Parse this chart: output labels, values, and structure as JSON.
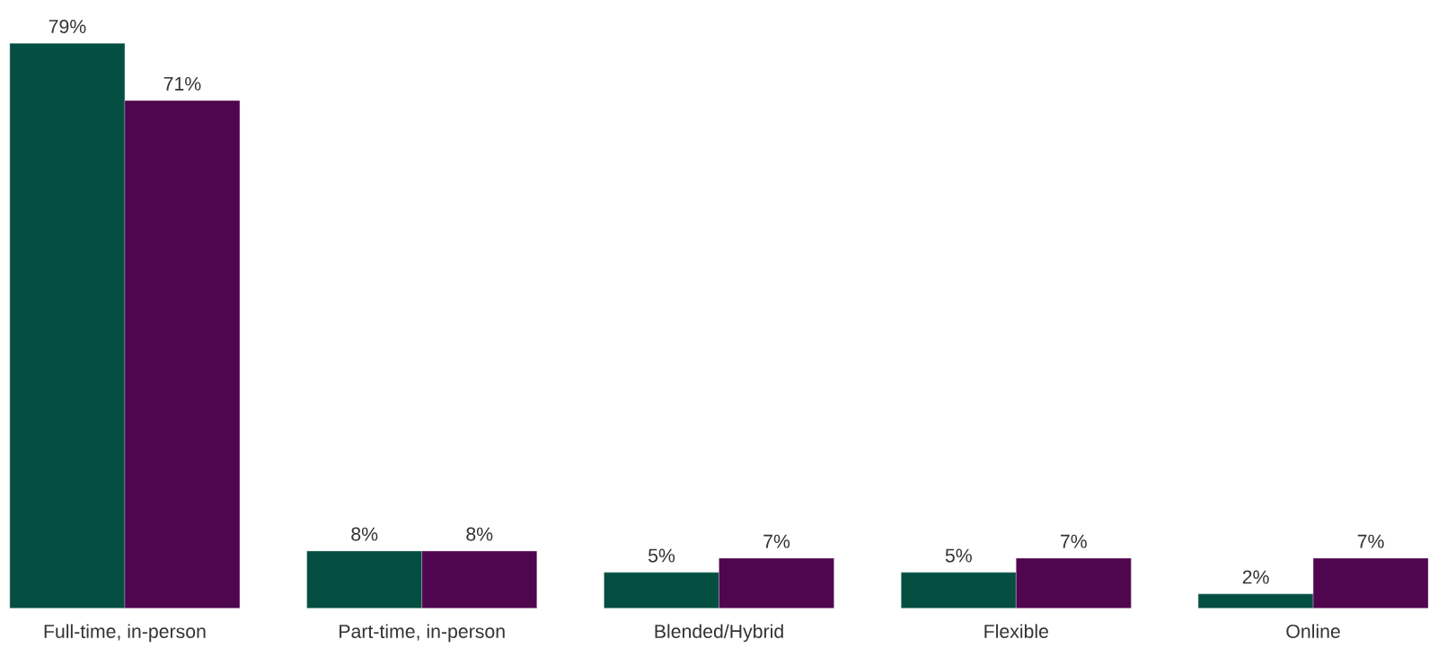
{
  "chart_data": {
    "type": "bar",
    "categories": [
      "Full-time, in-person",
      "Part-time, in-person",
      "Blended/Hybrid",
      "Flexible",
      "Online"
    ],
    "series": [
      {
        "color": "#054e42",
        "values": [
          79,
          8,
          5,
          5,
          2
        ],
        "value_labels": [
          "79%",
          "8%",
          "5%",
          "5%",
          "2%"
        ]
      },
      {
        "color": "#4f064e",
        "values": [
          71,
          8,
          7,
          7,
          7
        ],
        "value_labels": [
          "71%",
          "8%",
          "7%",
          "7%",
          "7%"
        ]
      }
    ]
  }
}
